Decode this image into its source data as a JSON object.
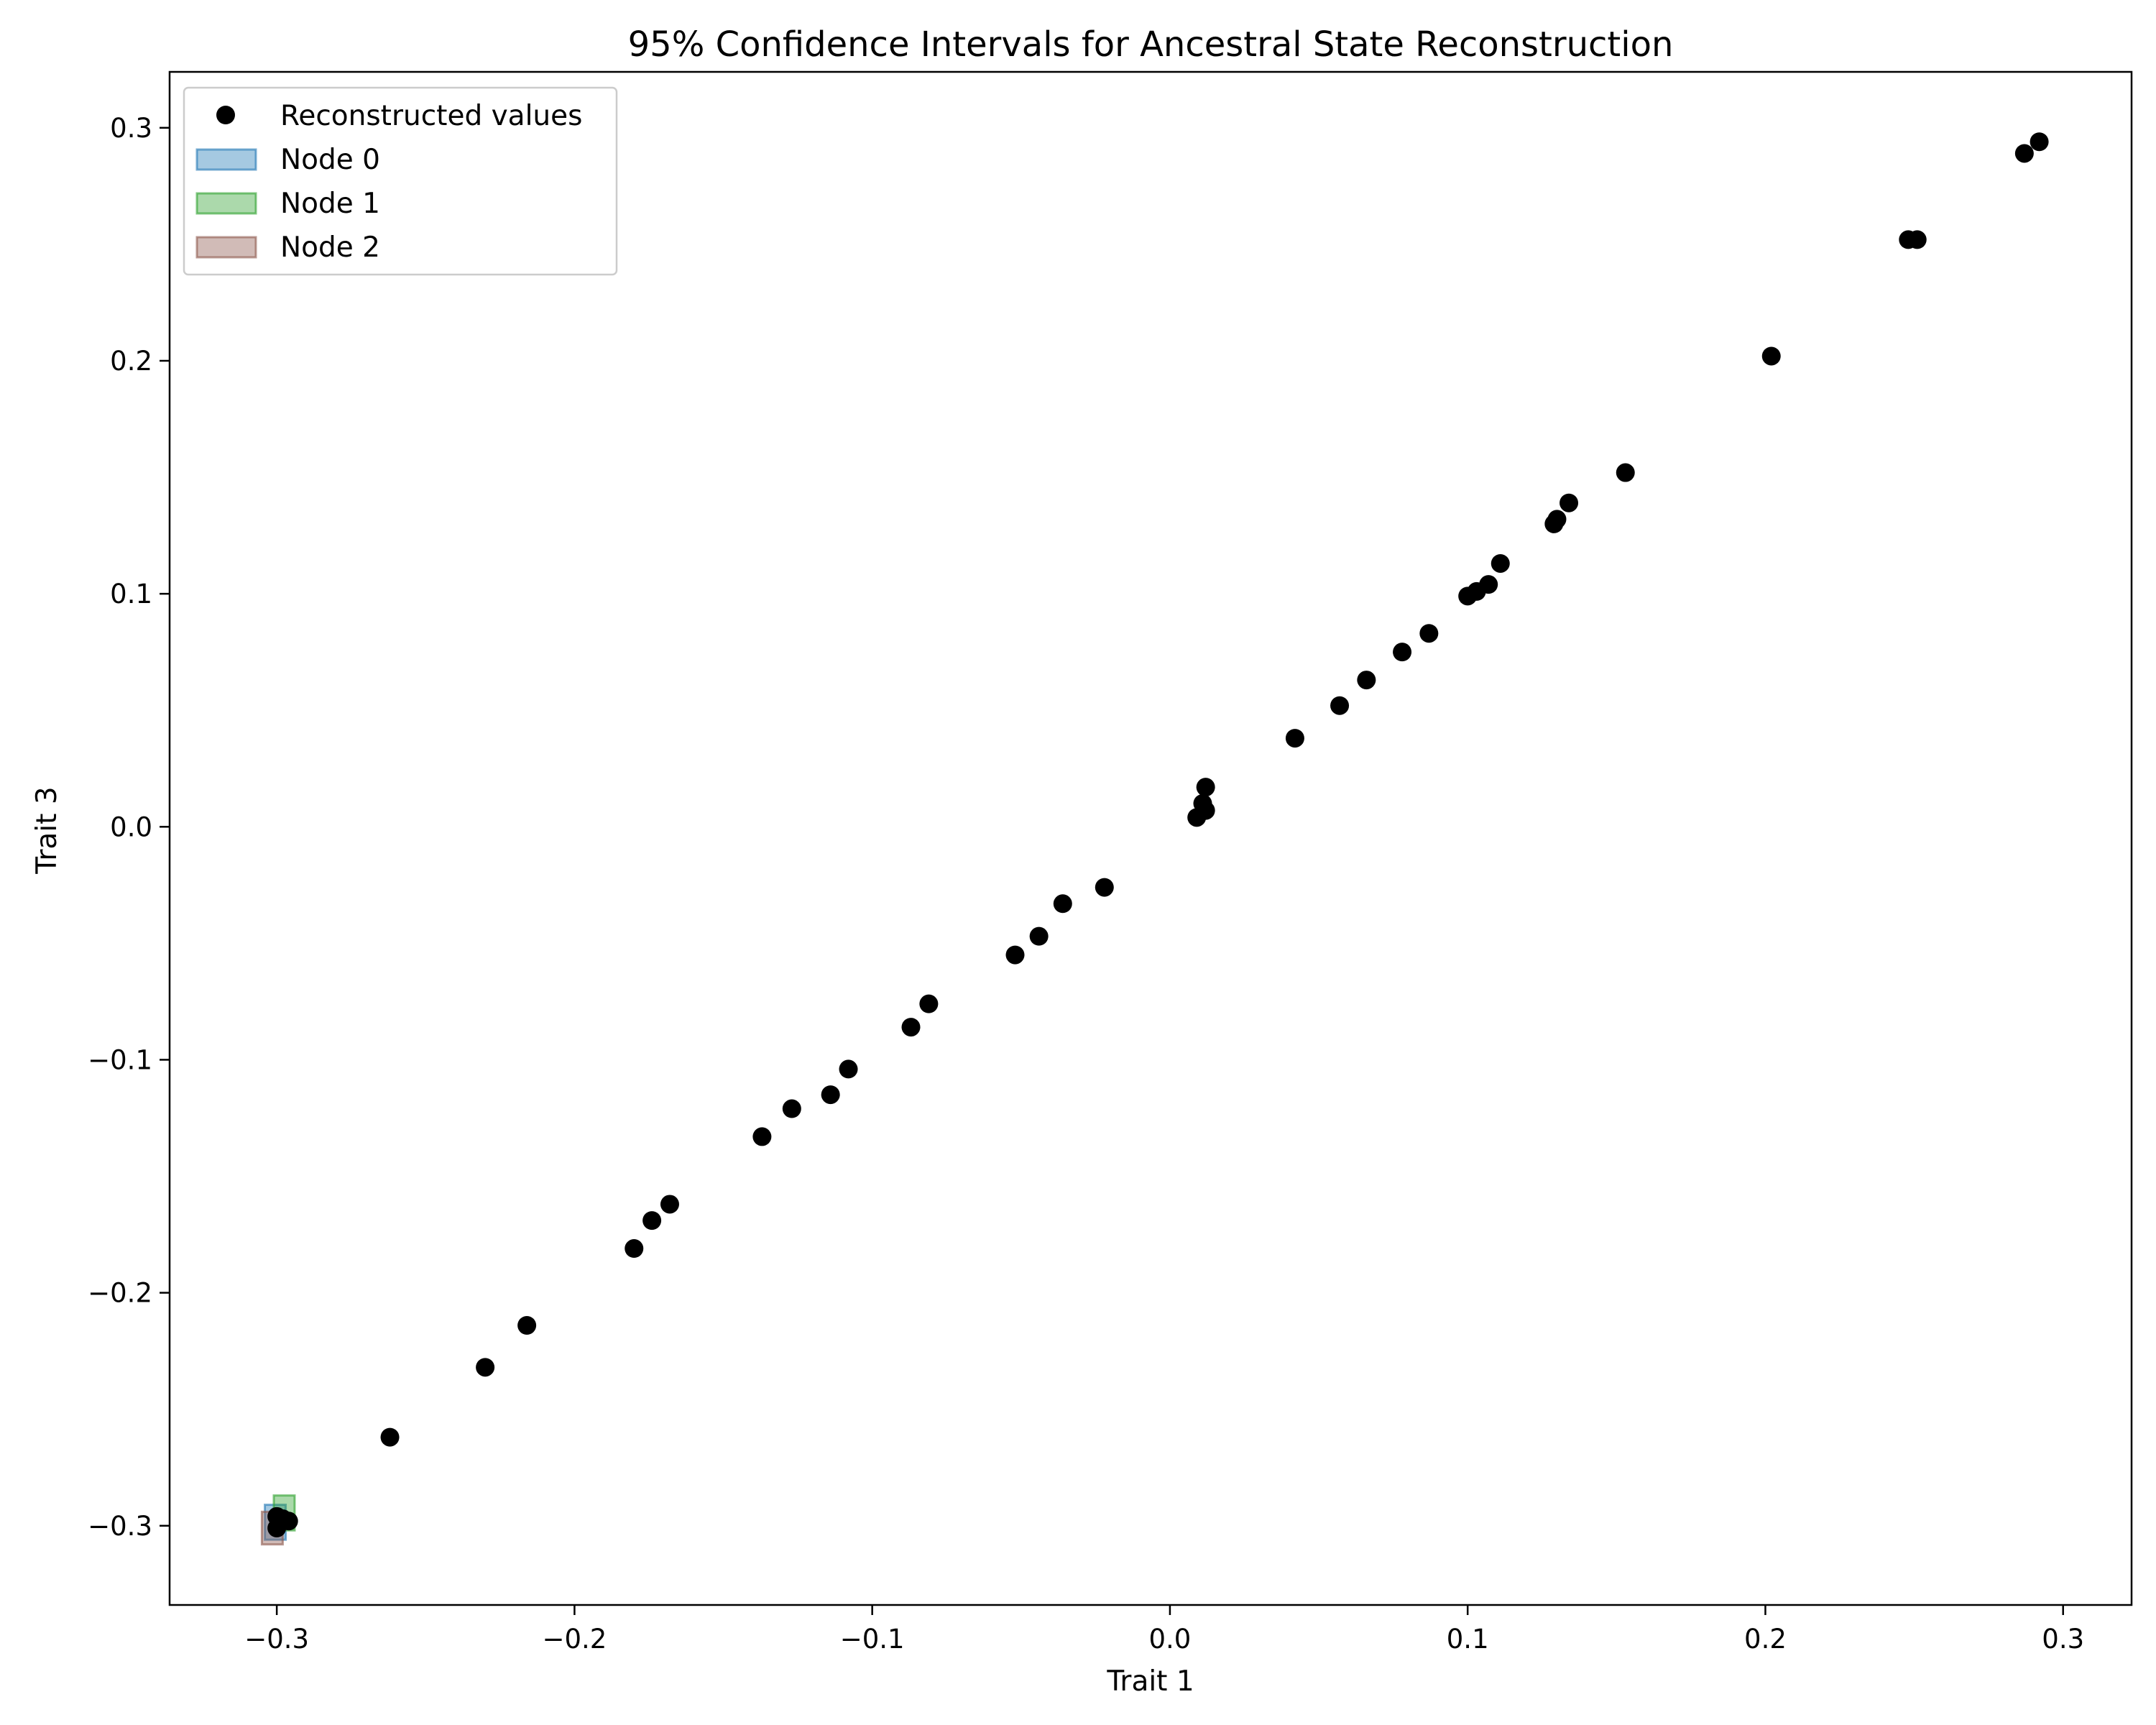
{
  "chart_data": {
    "type": "scatter",
    "title": "95% Confidence Intervals for Ancestral State Reconstruction",
    "xlabel": "Trait 1",
    "ylabel": "Trait 3",
    "xlim": [
      -0.336,
      0.323
    ],
    "ylim": [
      -0.334,
      0.324
    ],
    "xticks": [
      -0.3,
      -0.2,
      -0.1,
      0.0,
      0.1,
      0.2,
      0.3
    ],
    "xtick_labels": [
      "−0.3",
      "−0.2",
      "−0.1",
      "0.0",
      "0.1",
      "0.2",
      "0.3"
    ],
    "yticks": [
      -0.3,
      -0.2,
      -0.1,
      0.0,
      0.1,
      0.2,
      0.3
    ],
    "ytick_labels": [
      "−0.3",
      "−0.2",
      "−0.1",
      "0.0",
      "0.1",
      "0.2",
      "0.3"
    ],
    "grid": false,
    "legend_position": "top-left",
    "series": [
      {
        "name": "Reconstructed values",
        "kind": "points",
        "color": "#000000",
        "x": [
          -0.3,
          -0.298,
          -0.296,
          -0.3,
          -0.262,
          -0.23,
          -0.216,
          -0.18,
          -0.174,
          -0.168,
          -0.137,
          -0.127,
          -0.114,
          -0.108,
          -0.087,
          -0.081,
          -0.052,
          -0.044,
          -0.036,
          -0.022,
          0.009,
          0.011,
          0.012,
          0.012,
          0.042,
          0.057,
          0.066,
          0.078,
          0.087,
          0.1,
          0.103,
          0.107,
          0.111,
          0.129,
          0.13,
          0.134,
          0.153,
          0.202,
          0.248,
          0.251,
          0.287,
          0.292
        ],
        "y": [
          -0.301,
          -0.297,
          -0.298,
          -0.296,
          -0.262,
          -0.232,
          -0.214,
          -0.181,
          -0.169,
          -0.162,
          -0.133,
          -0.121,
          -0.115,
          -0.104,
          -0.086,
          -0.076,
          -0.055,
          -0.047,
          -0.033,
          -0.026,
          0.004,
          0.01,
          0.007,
          0.017,
          0.038,
          0.052,
          0.063,
          0.075,
          0.083,
          0.099,
          0.101,
          0.104,
          0.113,
          0.13,
          0.132,
          0.139,
          0.152,
          0.202,
          0.252,
          0.252,
          0.289,
          0.294
        ]
      },
      {
        "name": "Node 0",
        "kind": "interval",
        "color": "#1f77b4",
        "x_range": [
          -0.304,
          -0.297
        ],
        "y_range": [
          -0.306,
          -0.291
        ]
      },
      {
        "name": "Node 1",
        "kind": "interval",
        "color": "#2ca02c",
        "x_range": [
          -0.301,
          -0.294
        ],
        "y_range": [
          -0.302,
          -0.287
        ]
      },
      {
        "name": "Node 2",
        "kind": "interval",
        "color": "#8c564b",
        "x_range": [
          -0.305,
          -0.298
        ],
        "y_range": [
          -0.308,
          -0.294
        ]
      }
    ]
  }
}
